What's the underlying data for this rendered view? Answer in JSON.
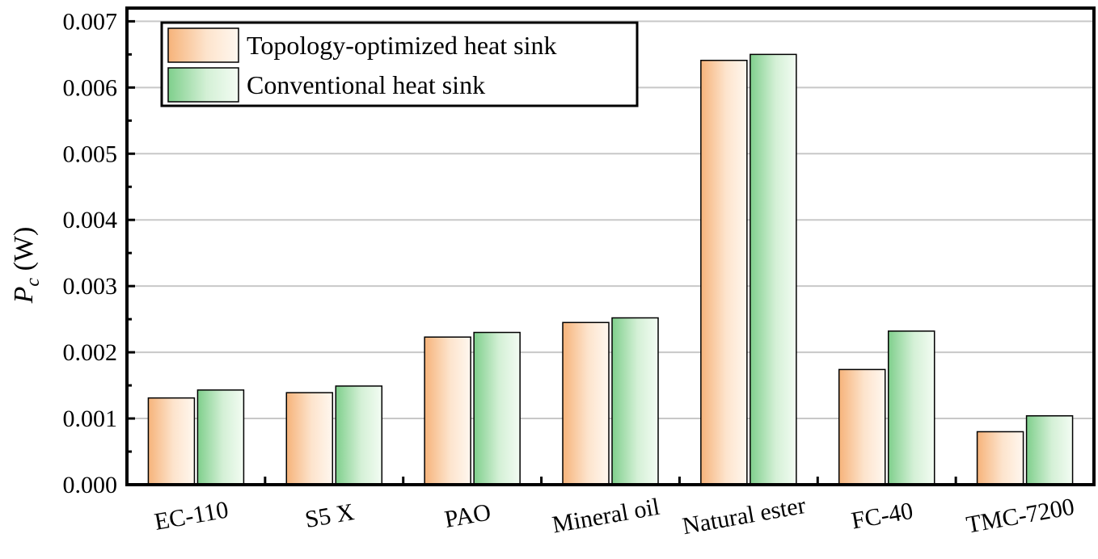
{
  "chart_data": {
    "type": "bar",
    "title": "",
    "xlabel": "",
    "ylabel": {
      "symbol": "P",
      "subscript": "c",
      "unit": " (W)"
    },
    "ylim": [
      0,
      0.0072
    ],
    "yticks": [
      "0.000",
      "0.001",
      "0.002",
      "0.003",
      "0.004",
      "0.005",
      "0.006",
      "0.007"
    ],
    "grid": true,
    "legend_position": "top-left",
    "categories": [
      "EC-110",
      "S5 X",
      "PAO",
      "Mineral oil",
      "Natural ester",
      "FC-40",
      "TMC-7200"
    ],
    "series": [
      {
        "name": "Topology-optimized heat sink",
        "color": "#f8c08e",
        "values": [
          0.00131,
          0.00139,
          0.00223,
          0.00245,
          0.00641,
          0.00174,
          0.0008
        ]
      },
      {
        "name": "Conventional heat sink",
        "color": "#8fd49a",
        "values": [
          0.00143,
          0.00149,
          0.0023,
          0.00252,
          0.0065,
          0.00232,
          0.00104
        ]
      }
    ]
  }
}
